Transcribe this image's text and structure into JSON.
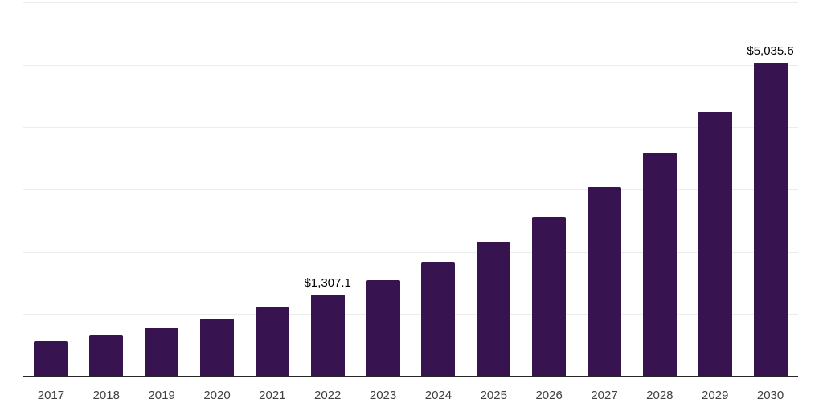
{
  "chart_data": {
    "type": "bar",
    "title": "",
    "xlabel": "",
    "ylabel": "",
    "categories": [
      "2017",
      "2018",
      "2019",
      "2020",
      "2021",
      "2022",
      "2023",
      "2024",
      "2025",
      "2026",
      "2027",
      "2028",
      "2029",
      "2030"
    ],
    "values": [
      562.9,
      666.2,
      788.5,
      933.2,
      1104.4,
      1307.1,
      1547.1,
      1831.1,
      2167.3,
      2565.3,
      3036.3,
      3593.8,
      4253.6,
      5035.6
    ],
    "data_labels": [
      {
        "category": "2022",
        "text": "$1,307.1"
      },
      {
        "category": "2030",
        "text": "$5,035.6"
      }
    ],
    "ylim": [
      0,
      6000
    ],
    "gridline_step": 1000,
    "grid": "horizontal",
    "legend": "none",
    "y_axis_tick_labels_visible": false,
    "bar_color": "#371450",
    "gridline_color": "#ececec",
    "axis_line_color": "#262626",
    "tick_label_color": "#404040",
    "data_label_color": "#000000",
    "background_color": "#ffffff"
  }
}
